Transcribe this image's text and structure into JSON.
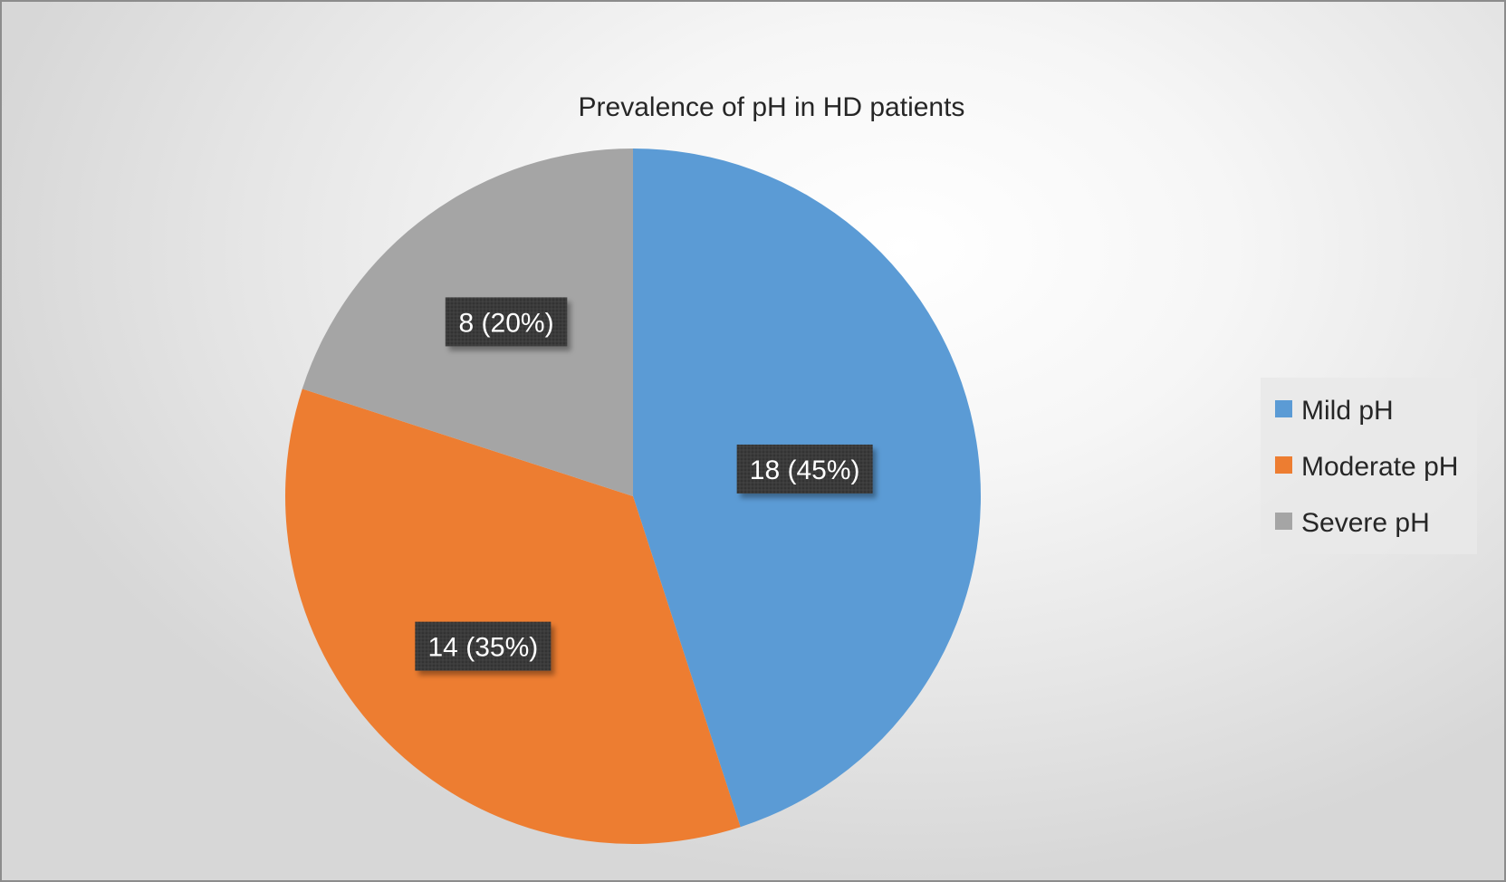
{
  "chart_data": {
    "type": "pie",
    "title": "Prevalence of pH in HD patients",
    "categories": [
      "Mild pH",
      "Moderate pH",
      "Severe pH"
    ],
    "values": [
      18,
      14,
      8
    ],
    "percentages": [
      45,
      35,
      20
    ],
    "data_labels": [
      "18 (45%)",
      "14 (35%)",
      "8 (20%)"
    ],
    "colors": [
      "#5b9bd5",
      "#ed7d31",
      "#a5a5a5"
    ],
    "start_angle_deg": 0,
    "direction": "clockwise",
    "legend": {
      "position": "right",
      "entries": [
        "Mild pH",
        "Moderate pH",
        "Severe pH"
      ]
    }
  }
}
